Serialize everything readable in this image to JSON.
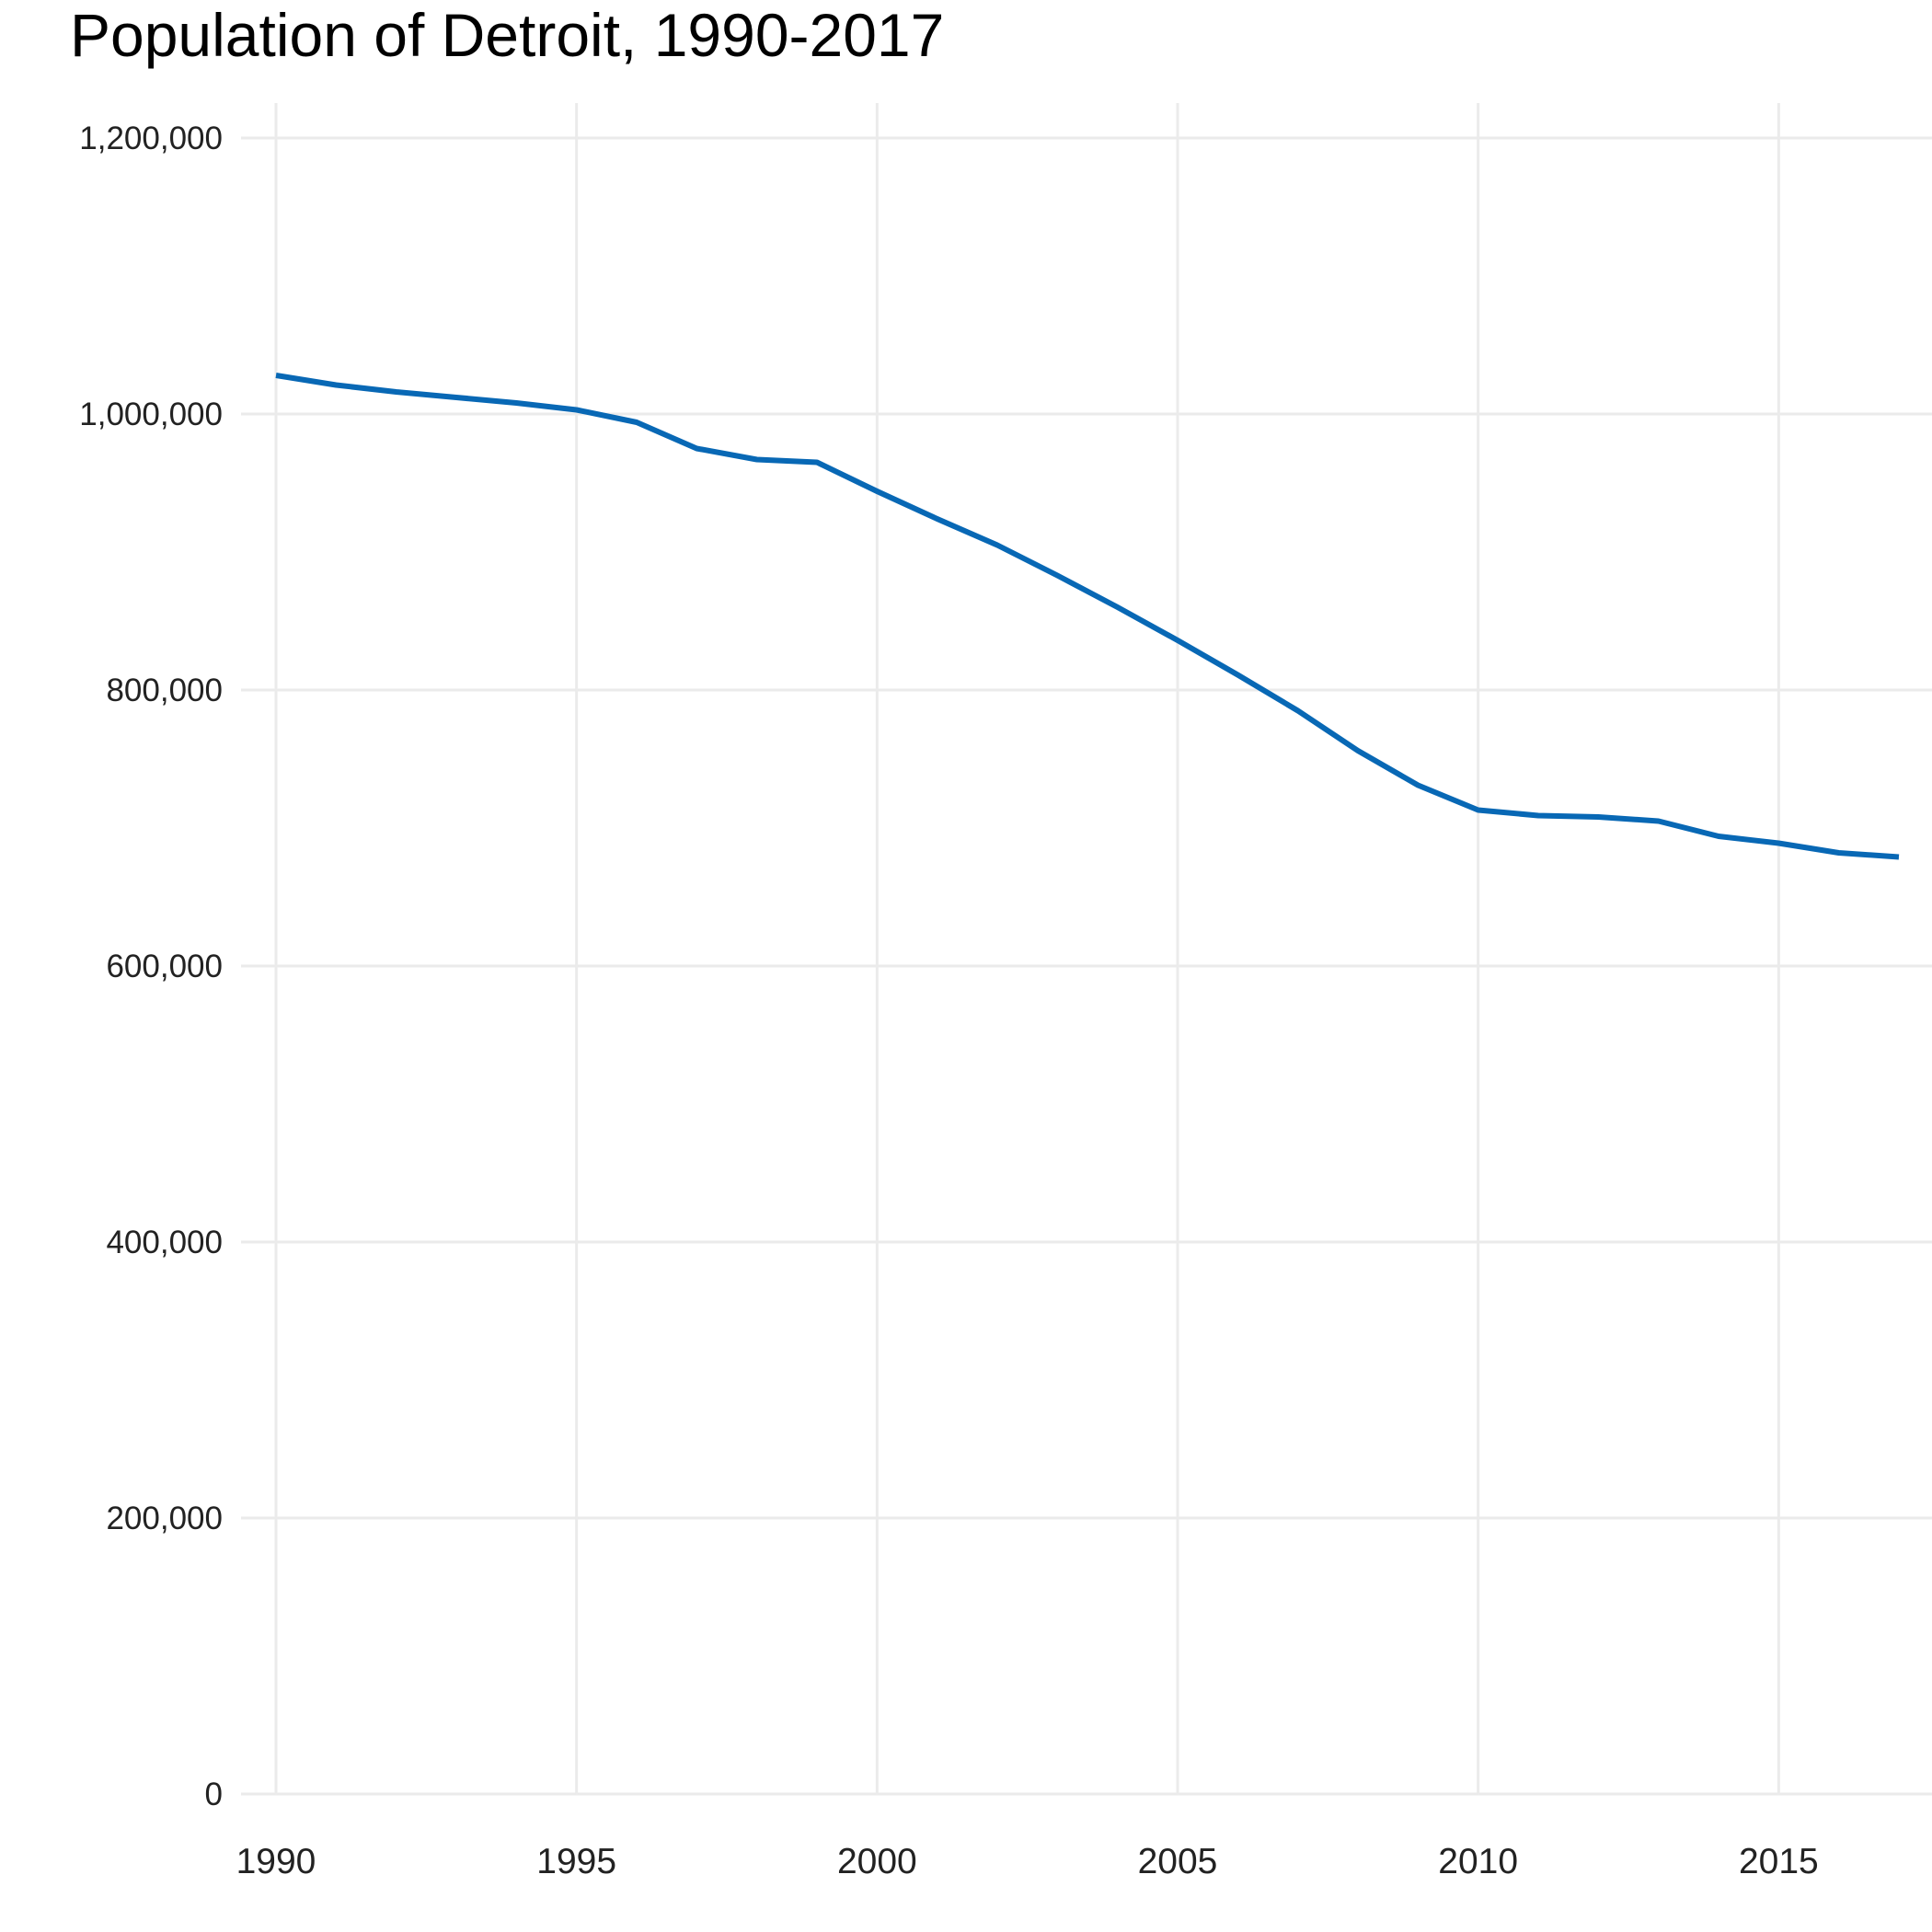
{
  "chart_data": {
    "type": "line",
    "title": "Population of Detroit, 1990-2017",
    "xlabel": "",
    "ylabel": "",
    "xlim": [
      1990,
      2017
    ],
    "ylim": [
      0,
      1200000
    ],
    "grid": true,
    "legend": "none",
    "x_ticks": [
      1990,
      1995,
      2000,
      2005,
      2010,
      2015
    ],
    "x_tick_labels": [
      "1990",
      "1995",
      "2000",
      "2005",
      "2010",
      "2015"
    ],
    "y_ticks": [
      0,
      200000,
      400000,
      600000,
      800000,
      1000000,
      1200000
    ],
    "y_tick_labels": [
      "0",
      "200,000",
      "400,000",
      "600,000",
      "800,000",
      "1,000,000",
      "1,200,000"
    ],
    "x": [
      1990,
      1991,
      1992,
      1993,
      1994,
      1995,
      1996,
      1997,
      1998,
      1999,
      2000,
      2001,
      2002,
      2003,
      2004,
      2005,
      2006,
      2007,
      2008,
      2009,
      2010,
      2011,
      2012,
      2013,
      2014,
      2015,
      2016,
      2017
    ],
    "series": [
      {
        "color": "#0868B5",
        "values": [
          1028000,
          1021000,
          1016000,
          1012000,
          1008000,
          1003000,
          994000,
          975000,
          967000,
          965000,
          944000,
          924000,
          905000,
          883000,
          860000,
          836000,
          811000,
          785000,
          756000,
          731000,
          713000,
          709000,
          708000,
          705000,
          694000,
          689000,
          682000,
          679000
        ]
      }
    ],
    "colors": {
      "line": "#0868B5",
      "grid": "#EBEBEB",
      "text": "#222222"
    }
  }
}
